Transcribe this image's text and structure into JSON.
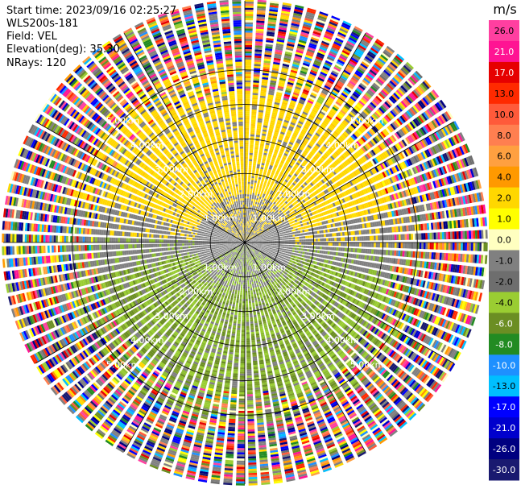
{
  "header": {
    "start_time": "Start time: 2023/09/16 02:25:27",
    "instrument": "WLS200s-181",
    "field": "Field: VEL",
    "elevation": "Elevation(deg): 35.30",
    "nrays": "NRays: 120"
  },
  "chart_data": {
    "type": "heatmap",
    "projection": "polar-ppi",
    "field": "VEL",
    "unit": "m/s",
    "n_rays": 120,
    "range_rings_km": [
      1.0,
      2.0,
      3.0,
      4.0,
      5.0
    ],
    "range_ring_labels": [
      "1.00km",
      "2.00km",
      "3.00km",
      "4.00km",
      "5.00km"
    ],
    "max_range_km": 7.0,
    "colorbar": {
      "unit_label": "m/s",
      "tick_labels": [
        "26.0",
        "21.0",
        "17.0",
        "13.0",
        "10.0",
        "8.0",
        "6.0",
        "4.0",
        "2.0",
        "1.0",
        "0.0",
        "-1.0",
        "-2.0",
        "-4.0",
        "-6.0",
        "-8.0",
        "-10.0",
        "-13.0",
        "-17.0",
        "-21.0",
        "-26.0",
        "-30.0"
      ],
      "colors": [
        "#ff3fa0",
        "#ff1493",
        "#e60000",
        "#ff2a00",
        "#ff5a3a",
        "#ff7f50",
        "#ffa040",
        "#ff9900",
        "#ffd700",
        "#ffff00",
        "#ffffc0",
        "#808080",
        "#6e6e6e",
        "#9acd32",
        "#6b8e23",
        "#228b22",
        "#1e90ff",
        "#00bfff",
        "#0000ff",
        "#0000cd",
        "#000080",
        "#191970"
      ]
    },
    "velocity_pattern": {
      "north_half": "positive ~1 to 4 m/s (yellow)",
      "south_half": "negative ~-1 to -4 m/s (green)",
      "near_center": "near 0 m/s (grey)",
      "outer_ranges": "noisy, all values"
    }
  }
}
